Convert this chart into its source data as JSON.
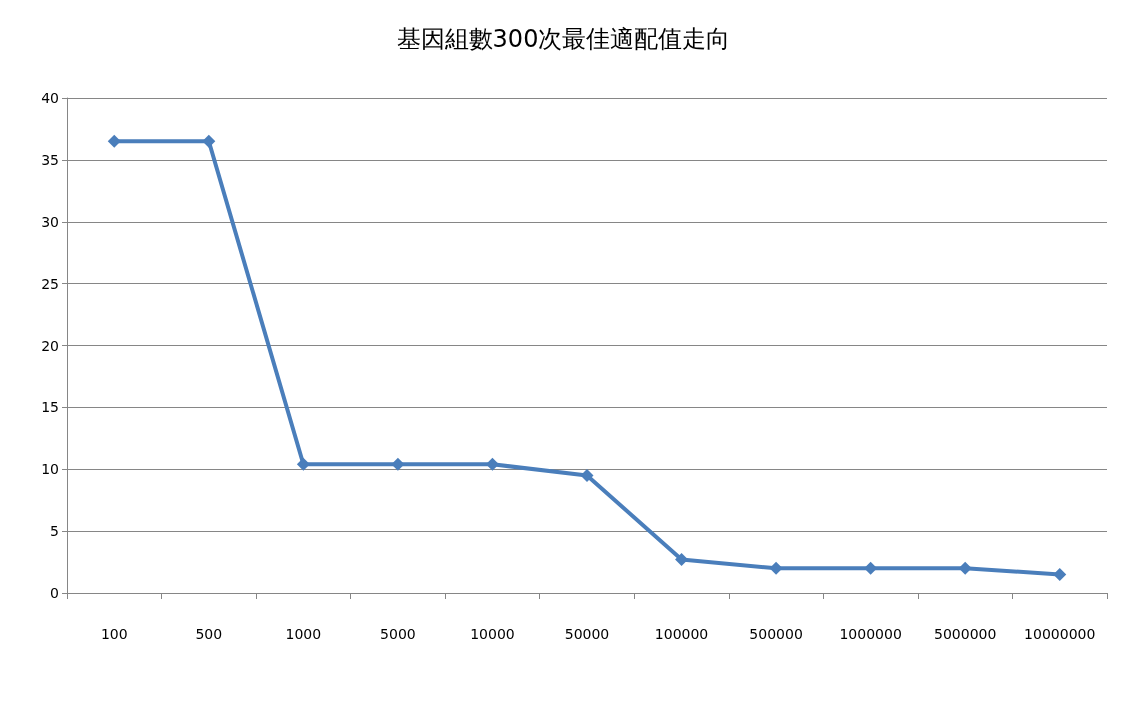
{
  "chart_data": {
    "type": "line",
    "title": "基因組數300次最佳適配值走向",
    "categories": [
      "100",
      "500",
      "1000",
      "5000",
      "10000",
      "50000",
      "100000",
      "500000",
      "1000000",
      "5000000",
      "10000000"
    ],
    "series": [
      {
        "color": "#4a7ebb",
        "values": [
          36.5,
          36.5,
          10.4,
          10.4,
          10.4,
          9.5,
          2.7,
          2.0,
          2.0,
          2.0,
          1.5
        ]
      }
    ],
    "ylim": [
      0,
      40
    ],
    "yticks": [
      0,
      5,
      10,
      15,
      20,
      25,
      30,
      35,
      40
    ],
    "grid": "y",
    "marker": "diamond",
    "line_style": "solid"
  }
}
